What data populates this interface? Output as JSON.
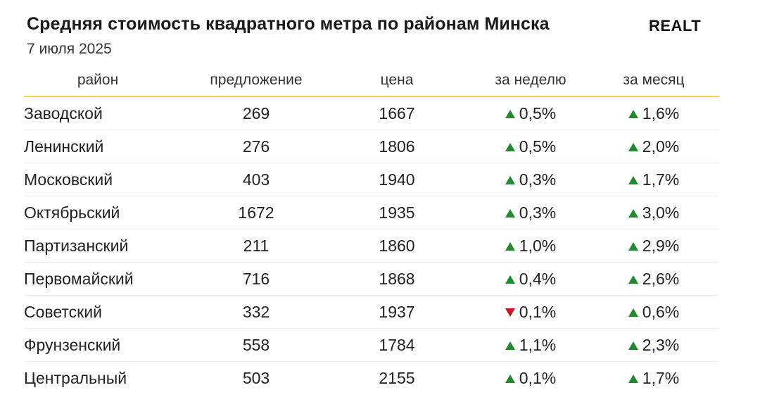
{
  "title": "Средняя стоимость квадратного метра по районам Минска",
  "subtitle": "7 июля 2025",
  "logo_text": "REALT",
  "colors": {
    "up": "#1e8c2a",
    "down": "#c8161d",
    "header_rule": "#f5d34a"
  },
  "chart_data": {
    "type": "table",
    "columns": [
      "район",
      "предложение",
      "цена",
      "за неделю",
      "за месяц"
    ],
    "rows": [
      {
        "district": "Заводской",
        "offers": "269",
        "price": "1667",
        "week": "0,5%",
        "week_dir": "up",
        "month": "1,6%",
        "month_dir": "up"
      },
      {
        "district": "Ленинский",
        "offers": "276",
        "price": "1806",
        "week": "0,5%",
        "week_dir": "up",
        "month": "2,0%",
        "month_dir": "up"
      },
      {
        "district": "Московский",
        "offers": "403",
        "price": "1940",
        "week": "0,3%",
        "week_dir": "up",
        "month": "1,7%",
        "month_dir": "up"
      },
      {
        "district": "Октябрьский",
        "offers": "1672",
        "price": "1935",
        "week": "0,3%",
        "week_dir": "up",
        "month": "3,0%",
        "month_dir": "up"
      },
      {
        "district": "Партизанский",
        "offers": "211",
        "price": "1860",
        "week": "1,0%",
        "week_dir": "up",
        "month": "2,9%",
        "month_dir": "up"
      },
      {
        "district": "Первомайский",
        "offers": "716",
        "price": "1868",
        "week": "0,4%",
        "week_dir": "up",
        "month": "2,6%",
        "month_dir": "up"
      },
      {
        "district": "Советский",
        "offers": "332",
        "price": "1937",
        "week": "0,1%",
        "week_dir": "down",
        "month": "0,6%",
        "month_dir": "up"
      },
      {
        "district": "Фрунзенский",
        "offers": "558",
        "price": "1784",
        "week": "1,1%",
        "week_dir": "up",
        "month": "2,3%",
        "month_dir": "up"
      },
      {
        "district": "Центральный",
        "offers": "503",
        "price": "2155",
        "week": "0,1%",
        "week_dir": "up",
        "month": "1,7%",
        "month_dir": "up"
      }
    ]
  }
}
